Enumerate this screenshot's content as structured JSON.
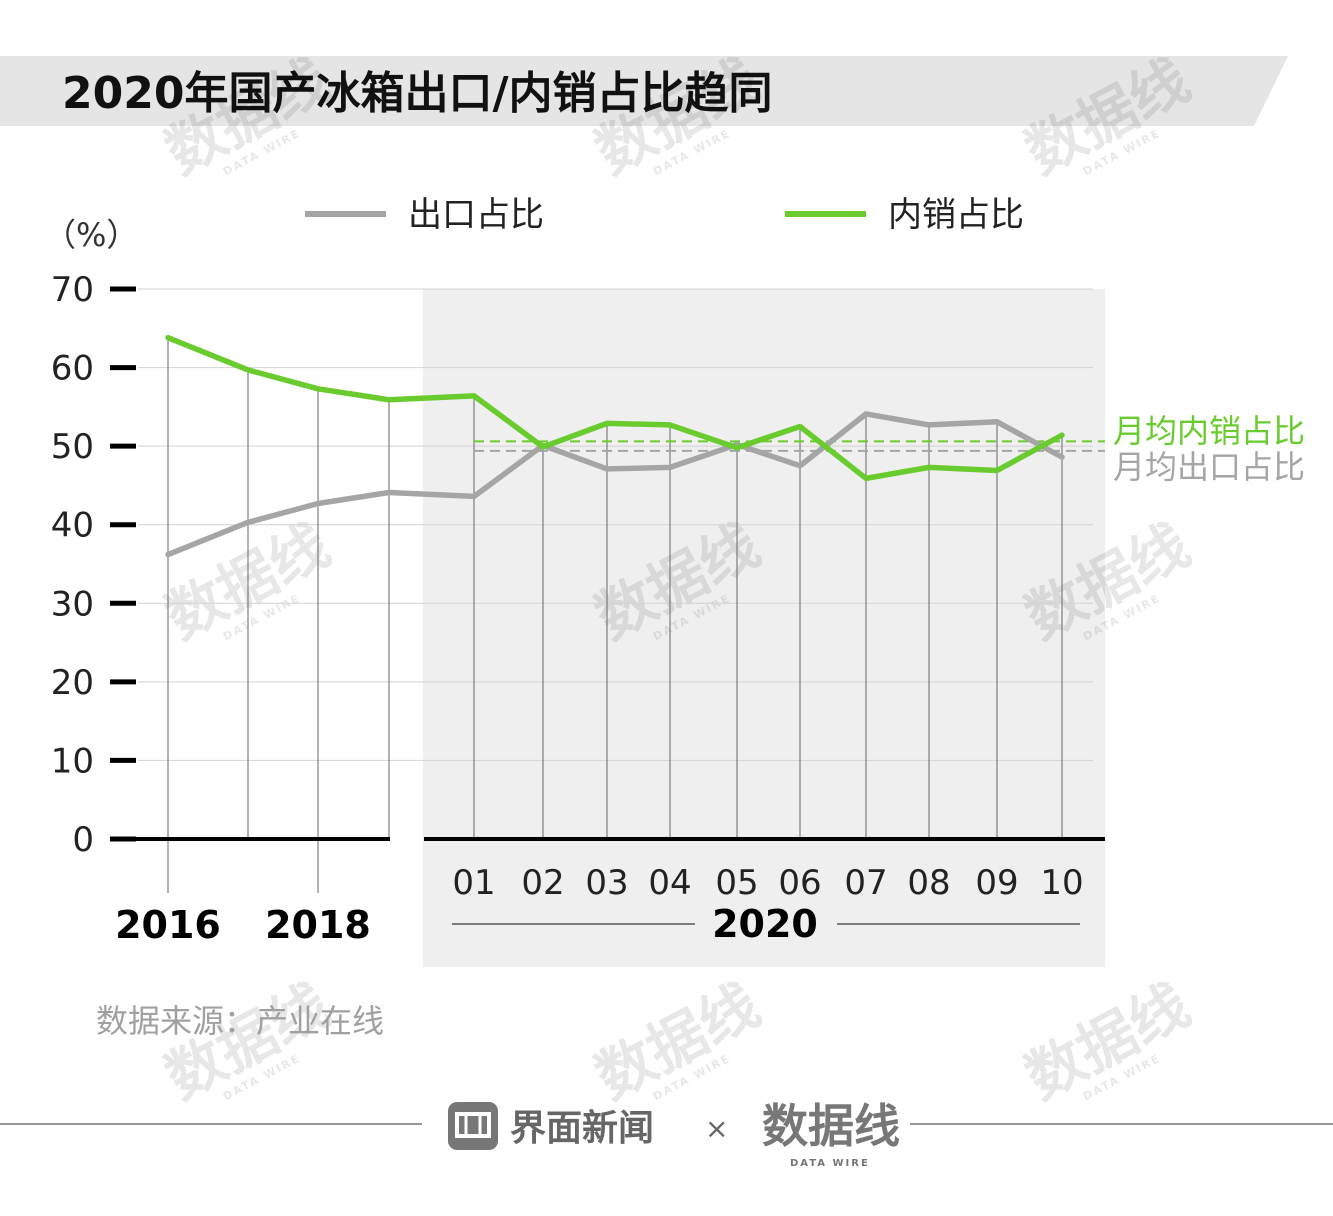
{
  "title": "2020年国产冰箱出口/内销占比趋同",
  "unit_label": "（%）",
  "source": "数据来源：产业在线",
  "watermark": "数据线",
  "watermark_sub": "DATA WIRE",
  "footer": {
    "brand": "界面新闻",
    "separator": "×",
    "partner": "数据线",
    "partner_sub": "DATA WIRE"
  },
  "colors": {
    "export": "#a5a5a5",
    "domestic": "#6acb2e",
    "shaded": "#efefef",
    "title_band": "#e5e5e5"
  },
  "chart_data": {
    "type": "line",
    "ylim": [
      0,
      70
    ],
    "yticks": [
      "0",
      "10",
      "20",
      "30",
      "40",
      "50",
      "60",
      "70"
    ],
    "x_labels_years": [
      "2016",
      "2018"
    ],
    "x_labels_months": [
      "01",
      "02",
      "03",
      "04",
      "05",
      "06",
      "07",
      "08",
      "09",
      "10"
    ],
    "month_group_label": "2020",
    "legend": {
      "position": "top",
      "export_label": "出口占比",
      "domestic_label": "内销占比"
    },
    "series": [
      {
        "name": "出口占比",
        "key": "export",
        "annual": [
          36.2,
          40.3,
          42.7,
          44.1
        ],
        "monthly": [
          43.6,
          50.1,
          47.1,
          47.3,
          50.2,
          47.5,
          54.1,
          52.7,
          53.1,
          48.6
        ]
      },
      {
        "name": "内销占比",
        "key": "domestic",
        "annual": [
          63.8,
          59.7,
          57.3,
          55.9
        ],
        "monthly": [
          56.4,
          49.9,
          52.9,
          52.7,
          49.8,
          52.5,
          45.9,
          47.3,
          46.9,
          51.4
        ]
      }
    ],
    "reference_lines": [
      {
        "key": "domestic",
        "label": "月均内销占比",
        "value": 50.6
      },
      {
        "key": "export",
        "label": "月均出口占比",
        "value": 49.4
      }
    ]
  }
}
